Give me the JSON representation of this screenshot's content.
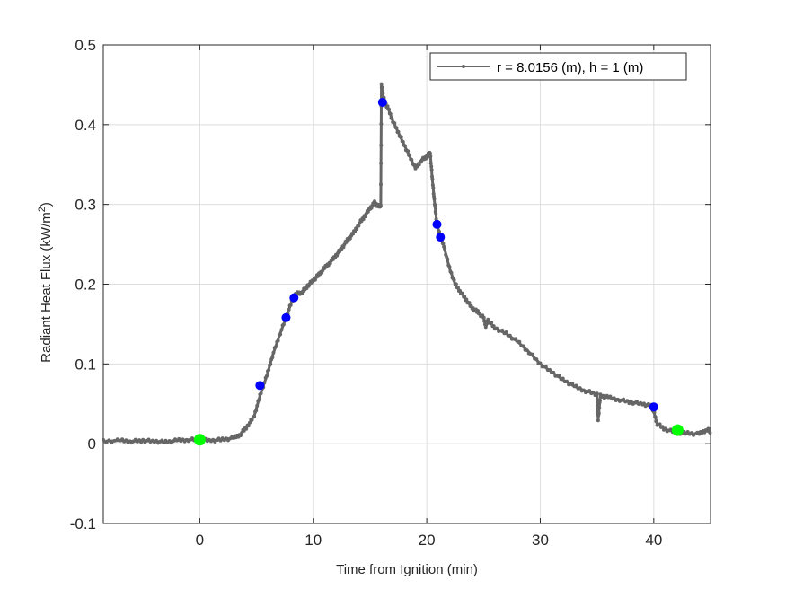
{
  "chart_data": {
    "type": "line",
    "title": "",
    "xlabel": "Time from Ignition (min)",
    "ylabel": "Radiant Heat Flux (kW/m^2)",
    "ylabel_parts": {
      "main": "Radiant Heat Flux (kW/m",
      "sup": "2",
      "end": ")"
    },
    "xlim": [
      -8.5,
      45
    ],
    "ylim": [
      -0.1,
      0.5
    ],
    "xticks": [
      0,
      10,
      20,
      30,
      40
    ],
    "yticks": [
      -0.1,
      0,
      0.1,
      0.2,
      0.3,
      0.4,
      0.5
    ],
    "ytick_labels": [
      "-0.1",
      "0",
      "0.1",
      "0.2",
      "0.3",
      "0.4",
      "0.5"
    ],
    "grid": true,
    "legend": {
      "position": "northeast",
      "entries": [
        "r = 8.0156 (m), h = 1 (m)"
      ]
    },
    "colors": {
      "line": "#666666",
      "blue_markers": "#0000ff",
      "green_markers": "#00ff00",
      "grid": "#dedede",
      "axes": "#262626"
    },
    "series": [
      {
        "name": "r = 8.0156 (m), h = 1 (m)",
        "x": [
          -8.5,
          -7,
          -6,
          -5,
          -4,
          -3,
          -2,
          -1,
          0,
          1,
          2,
          3,
          3.6,
          4.2,
          4.8,
          5.3,
          5.9,
          6.4,
          7,
          7.6,
          8.1,
          8.5,
          9,
          9.5,
          10,
          10.5,
          11,
          11.5,
          12,
          12.5,
          13,
          13.5,
          14,
          14.5,
          15,
          15.4,
          15.8,
          15.95,
          16.0,
          16.1,
          16.3,
          16.6,
          17,
          17.5,
          18,
          18.5,
          19,
          19.5,
          20,
          20.3,
          20.5,
          20.7,
          20.9,
          21.2,
          21.5,
          22,
          22.5,
          23,
          23.5,
          24,
          24.5,
          25,
          25.2,
          25.4,
          26,
          27,
          28,
          29,
          30,
          31,
          32,
          33,
          34,
          35,
          35.1,
          35.3,
          36,
          37,
          38,
          39,
          39.8,
          40,
          40.3,
          41,
          42,
          43,
          44,
          44.7,
          45
        ],
        "y": [
          0.003,
          0.004,
          0.003,
          0.004,
          0.003,
          0.002,
          0.004,
          0.005,
          0.005,
          0.004,
          0.005,
          0.007,
          0.012,
          0.022,
          0.035,
          0.06,
          0.085,
          0.11,
          0.135,
          0.158,
          0.178,
          0.188,
          0.19,
          0.198,
          0.205,
          0.212,
          0.22,
          0.228,
          0.236,
          0.245,
          0.255,
          0.263,
          0.275,
          0.285,
          0.295,
          0.302,
          0.297,
          0.3,
          0.45,
          0.44,
          0.428,
          0.42,
          0.405,
          0.39,
          0.375,
          0.36,
          0.345,
          0.355,
          0.36,
          0.365,
          0.33,
          0.3,
          0.275,
          0.26,
          0.248,
          0.22,
          0.2,
          0.19,
          0.18,
          0.17,
          0.165,
          0.158,
          0.148,
          0.155,
          0.145,
          0.138,
          0.128,
          0.115,
          0.1,
          0.09,
          0.08,
          0.072,
          0.066,
          0.062,
          0.03,
          0.06,
          0.058,
          0.055,
          0.052,
          0.05,
          0.047,
          0.04,
          0.025,
          0.018,
          0.014,
          0.013,
          0.012,
          0.018,
          0.015
        ]
      }
    ],
    "highlight_points": {
      "blue": [
        {
          "x": 5.3,
          "y": 0.073
        },
        {
          "x": 7.6,
          "y": 0.158
        },
        {
          "x": 8.3,
          "y": 0.183
        },
        {
          "x": 16.1,
          "y": 0.428
        },
        {
          "x": 20.9,
          "y": 0.275
        },
        {
          "x": 21.2,
          "y": 0.259
        },
        {
          "x": 40.0,
          "y": 0.046
        }
      ],
      "green": [
        {
          "x": 0.0,
          "y": 0.005
        },
        {
          "x": 42.1,
          "y": 0.017
        }
      ]
    }
  }
}
